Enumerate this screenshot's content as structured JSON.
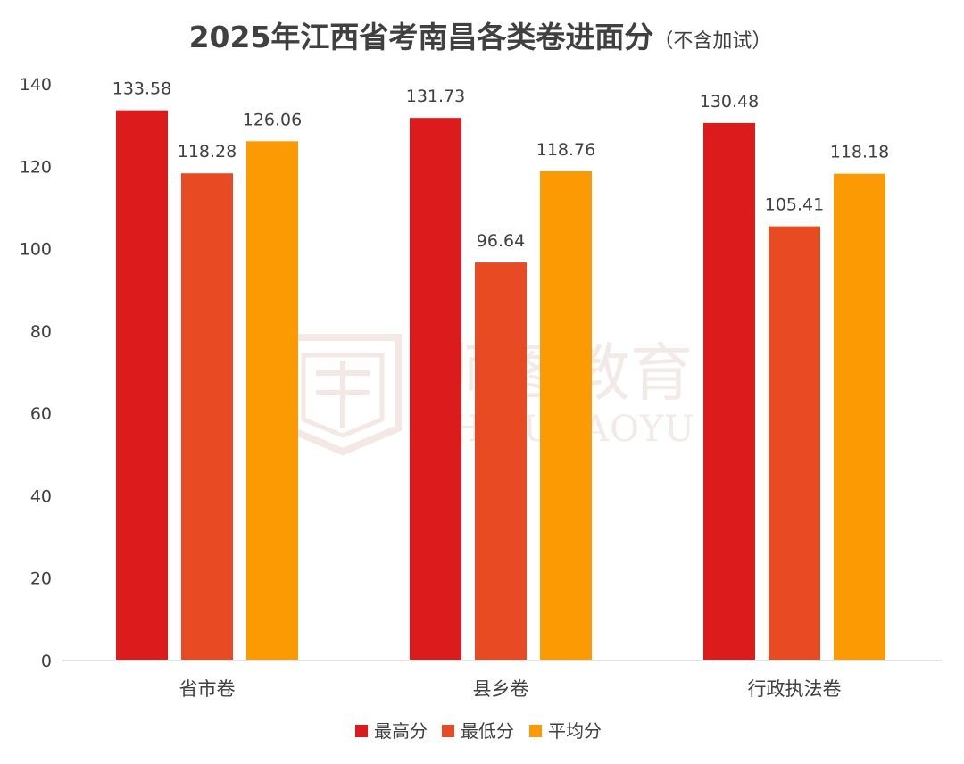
{
  "chart_data": {
    "type": "bar",
    "title": "2025年江西省考南昌各类卷进面分",
    "subtitle": "（不含加试）",
    "categories": [
      "省市卷",
      "县乡卷",
      "行政执法卷"
    ],
    "series": [
      {
        "name": "最高分",
        "color": "#dc1c1c",
        "values": [
          133.58,
          131.73,
          130.48
        ]
      },
      {
        "name": "最低分",
        "color": "#e84a23",
        "values": [
          118.28,
          96.64,
          105.41
        ]
      },
      {
        "name": "平均分",
        "color": "#fb9a02",
        "values": [
          126.06,
          118.76,
          118.18
        ]
      }
    ],
    "yticks": [
      0,
      20,
      40,
      60,
      80,
      100,
      120,
      140
    ],
    "ylim": [
      0,
      140
    ],
    "xlabel": "",
    "ylabel": "",
    "grid": false,
    "legend_position": "bottom-center",
    "axis_color": "#d9d9d9",
    "text_color": "#404040"
  },
  "watermark": {
    "icon": "shitu-logo-icon",
    "chinese": "师图教育",
    "latin": "SHITUJIAOYU",
    "color": "#e9d9d4"
  }
}
